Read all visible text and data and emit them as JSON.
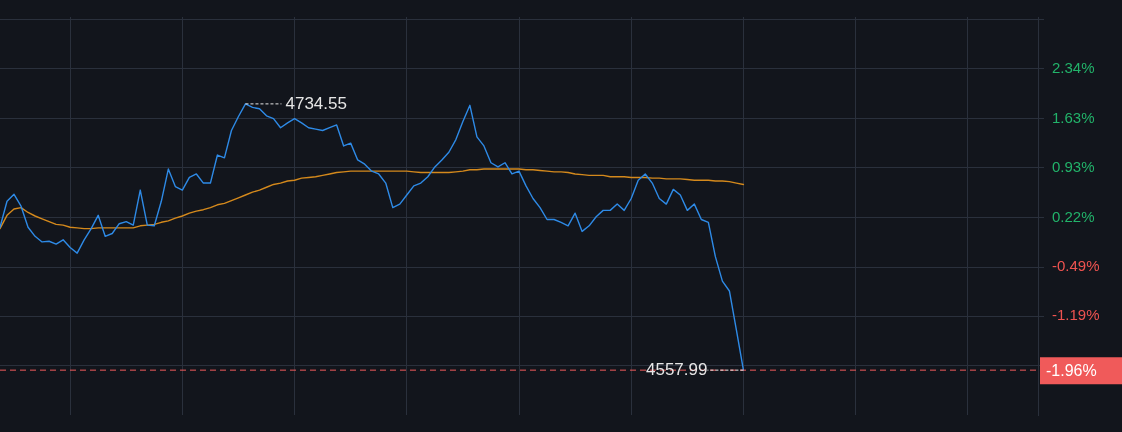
{
  "chart_data": {
    "type": "line",
    "categories": [
      null,
      null,
      null,
      null,
      null,
      null,
      null,
      null,
      null,
      null,
      null,
      null,
      null,
      null,
      null,
      null,
      null,
      null,
      null,
      null,
      null,
      null,
      null,
      null,
      null,
      null,
      null,
      null,
      null,
      null,
      null,
      null,
      null,
      null,
      null,
      null,
      null,
      null,
      null,
      null,
      null,
      null,
      null,
      null,
      null,
      null,
      null,
      null,
      null,
      null,
      null,
      null,
      null,
      null,
      null,
      null,
      null,
      null,
      null,
      null,
      null,
      null,
      null,
      null,
      null,
      null,
      null,
      null,
      null,
      null,
      null,
      null,
      null,
      null,
      null,
      null,
      null,
      null,
      null,
      null,
      null,
      null,
      null,
      null,
      null,
      null,
      null,
      null,
      null,
      null,
      null,
      null,
      null,
      null,
      null,
      null,
      null,
      null,
      null,
      null,
      null,
      null,
      null,
      null,
      null,
      null,
      null,
      null,
      null,
      null,
      null,
      null,
      null,
      null,
      null,
      null,
      null,
      null,
      null,
      null,
      null,
      null,
      null,
      null,
      null,
      null,
      null,
      null,
      null,
      null,
      null,
      null,
      null,
      null,
      null,
      null,
      null,
      null,
      null,
      null,
      null,
      null,
      null,
      null,
      null,
      null,
      null,
      null,
      null
    ],
    "series": [
      {
        "color": "#2e8ae6",
        "values": [
          0.08,
          0.45,
          0.55,
          0.38,
          0.08,
          -0.05,
          -0.13,
          -0.12,
          -0.16,
          -0.1,
          -0.21,
          -0.29,
          -0.1,
          0.06,
          0.25,
          -0.05,
          -0.01,
          0.13,
          0.16,
          0.11,
          0.61,
          0.11,
          0.1,
          0.45,
          0.91,
          0.66,
          0.61,
          0.79,
          0.84,
          0.71,
          0.71,
          1.11,
          1.07,
          1.46,
          1.66,
          1.84,
          1.79,
          1.77,
          1.67,
          1.63,
          1.5,
          1.57,
          1.63,
          1.57,
          1.5,
          1.48,
          1.46,
          1.5,
          1.54,
          1.24,
          1.28,
          1.04,
          0.98,
          0.88,
          0.84,
          0.71,
          0.36,
          0.41,
          0.54,
          0.67,
          0.71,
          0.8,
          0.94,
          1.04,
          1.15,
          1.33,
          1.59,
          1.82,
          1.37,
          1.24,
          1.0,
          0.94,
          1.0,
          0.84,
          0.88,
          0.67,
          0.49,
          0.36,
          0.19,
          0.19,
          0.15,
          0.1,
          0.28,
          0.02,
          0.1,
          0.23,
          0.32,
          0.32,
          0.41,
          0.32,
          0.49,
          0.75,
          0.84,
          0.71,
          0.49,
          0.41,
          0.62,
          0.54,
          0.32,
          0.41,
          0.19,
          0.15,
          -0.34,
          -0.69,
          -0.83,
          -1.39,
          -1.96,
          null,
          null,
          null,
          null,
          null,
          null,
          null,
          null,
          null,
          null,
          null,
          null,
          null,
          null,
          null,
          null,
          null,
          null,
          null,
          null,
          null,
          null,
          null,
          null,
          null,
          null,
          null,
          null,
          null,
          null,
          null,
          null,
          null,
          null,
          null,
          null,
          null,
          null,
          null,
          null,
          null,
          null
        ]
      },
      {
        "color": "#d4891c",
        "values": [
          0.06,
          0.25,
          0.34,
          0.36,
          0.29,
          0.24,
          0.2,
          0.16,
          0.12,
          0.11,
          0.08,
          0.07,
          0.06,
          0.06,
          0.07,
          0.07,
          0.07,
          0.07,
          0.07,
          0.07,
          0.1,
          0.11,
          0.12,
          0.15,
          0.17,
          0.21,
          0.24,
          0.28,
          0.31,
          0.33,
          0.36,
          0.4,
          0.42,
          0.46,
          0.5,
          0.54,
          0.58,
          0.61,
          0.65,
          0.69,
          0.71,
          0.74,
          0.75,
          0.78,
          0.79,
          0.8,
          0.82,
          0.84,
          0.86,
          0.87,
          0.88,
          0.88,
          0.88,
          0.88,
          0.88,
          0.88,
          0.88,
          0.88,
          0.88,
          0.87,
          0.86,
          0.86,
          0.86,
          0.86,
          0.86,
          0.87,
          0.88,
          0.9,
          0.9,
          0.91,
          0.91,
          0.91,
          0.91,
          0.91,
          0.91,
          0.9,
          0.9,
          0.89,
          0.88,
          0.87,
          0.87,
          0.86,
          0.84,
          0.83,
          0.82,
          0.82,
          0.82,
          0.8,
          0.8,
          0.8,
          0.79,
          0.79,
          0.79,
          0.78,
          0.78,
          0.77,
          0.77,
          0.77,
          0.76,
          0.75,
          0.75,
          0.75,
          0.74,
          0.74,
          0.73,
          0.71,
          0.69,
          null,
          null,
          null,
          null,
          null,
          null,
          null,
          null,
          null,
          null,
          null,
          null,
          null,
          null,
          null,
          null,
          null,
          null,
          null,
          null,
          null,
          null,
          null,
          null,
          null,
          null,
          null,
          null,
          null,
          null,
          null,
          null,
          null,
          null,
          null,
          null,
          null,
          null,
          null,
          null,
          null,
          null
        ]
      }
    ],
    "ylim": [
      -2.6,
      3.08
    ],
    "yticks": [
      {
        "value": 3.04,
        "label": null
      },
      {
        "value": 2.34,
        "label": "2.34%"
      },
      {
        "value": 1.63,
        "label": "1.63%"
      },
      {
        "value": 0.93,
        "label": "0.93%"
      },
      {
        "value": 0.22,
        "label": "0.22%"
      },
      {
        "value": -0.49,
        "label": "-0.49%"
      },
      {
        "value": -1.19,
        "label": "-1.19%"
      },
      {
        "value": -1.9,
        "label": null
      }
    ],
    "grid": true,
    "tick_labels": "y",
    "marker": "none",
    "line_style": "solid",
    "ref_lines": [
      {
        "axis": "y",
        "value": -1.96,
        "label": "-1.96%",
        "color": "#f05a5a",
        "line_style": "dashed"
      }
    ],
    "annotations": [
      "4734.55",
      "4557.99"
    ]
  }
}
